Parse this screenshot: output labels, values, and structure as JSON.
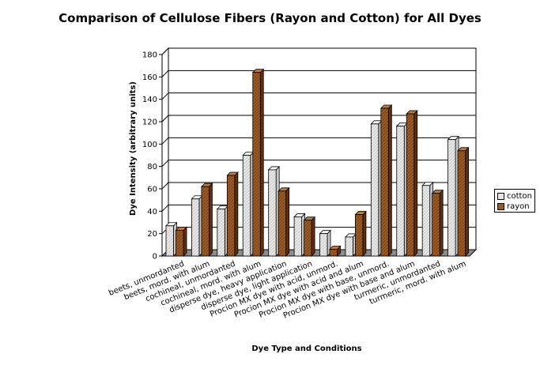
{
  "chart_data": {
    "type": "bar",
    "title": "Comparison of Cellulose Fibers (Rayon and Cotton) for All Dyes",
    "xlabel": "Dye Type and Conditions",
    "ylabel": "Dye Intensity (arbitrary units)",
    "ylim": [
      0,
      180
    ],
    "yticks": [
      0,
      20,
      40,
      60,
      80,
      100,
      120,
      140,
      160,
      180
    ],
    "grid": true,
    "legend_position": "right",
    "categories": [
      "beets, unmordanted",
      "beets, mord. with alum",
      "cochineal, unmordanted",
      "cochineal, mord. with alum",
      "disperse dye, heavy application",
      "disperse dye, light application",
      "Procion MX dye with acid, unmord.",
      "Procion MX dye with acid and alum",
      "Procion MX dye with base, unmord.",
      "Procion MX dye with base and alum",
      "turmeric, unmordanted",
      "turmeric, mord. with alum"
    ],
    "series": [
      {
        "name": "cotton",
        "color": "#e6e6e6",
        "values": [
          27,
          51,
          42,
          90,
          77,
          35,
          20,
          17,
          118,
          116,
          63,
          104
        ]
      },
      {
        "name": "rayon",
        "color": "#9a5a22",
        "values": [
          23,
          62,
          72,
          164,
          58,
          32,
          6,
          37,
          132,
          127,
          56,
          94
        ]
      }
    ]
  }
}
